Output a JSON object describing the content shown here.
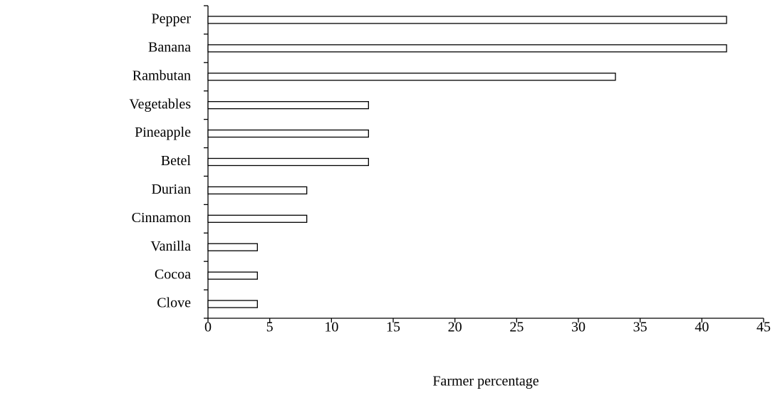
{
  "chart_data": {
    "type": "hbar",
    "categories": [
      "Pepper",
      "Banana",
      "Rambutan",
      "Vegetables",
      "Pineapple",
      "Betel",
      "Durian",
      "Cinnamon",
      "Vanilla",
      "Cocoa",
      "Clove"
    ],
    "values": [
      42,
      42,
      33,
      13,
      13,
      13,
      8,
      8,
      4,
      4,
      4
    ],
    "color": "#ffffff",
    "x_label": "Farmer percentage",
    "xlim": [
      0,
      45
    ],
    "xticks": [
      0,
      5,
      10,
      15,
      20,
      25,
      30,
      35,
      40,
      45
    ]
  }
}
